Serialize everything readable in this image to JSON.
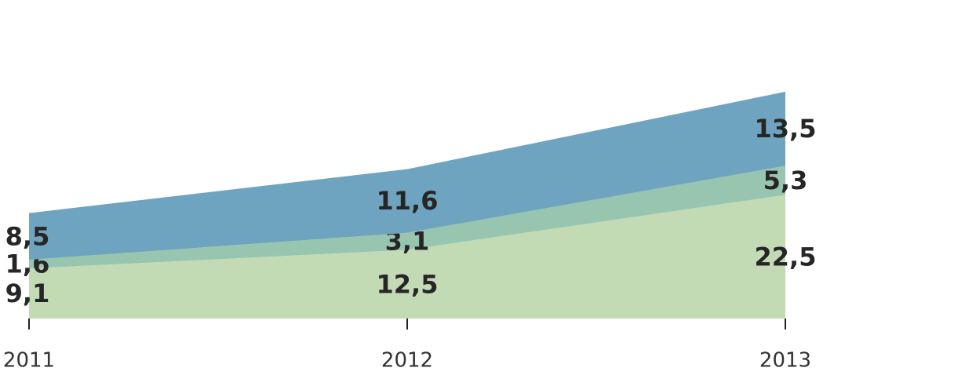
{
  "chart_data": {
    "type": "stacked_area",
    "categories": [
      "2011",
      "2012",
      "2013"
    ],
    "series": [
      {
        "color": "#c3dbb5",
        "values": [
          9.1,
          12.5,
          22.5
        ],
        "value_labels": [
          "9,1",
          "12,5",
          "22,5"
        ]
      },
      {
        "color": "#98c5b0",
        "values": [
          1.6,
          3.1,
          5.3
        ],
        "value_labels": [
          "1,6",
          "3,1",
          "5,3"
        ]
      },
      {
        "color": "#6ea4bf",
        "values": [
          8.5,
          11.6,
          13.5
        ],
        "value_labels": [
          "8,5",
          "11,6",
          "13,5"
        ]
      }
    ],
    "ylim": [
      0,
      58
    ]
  }
}
